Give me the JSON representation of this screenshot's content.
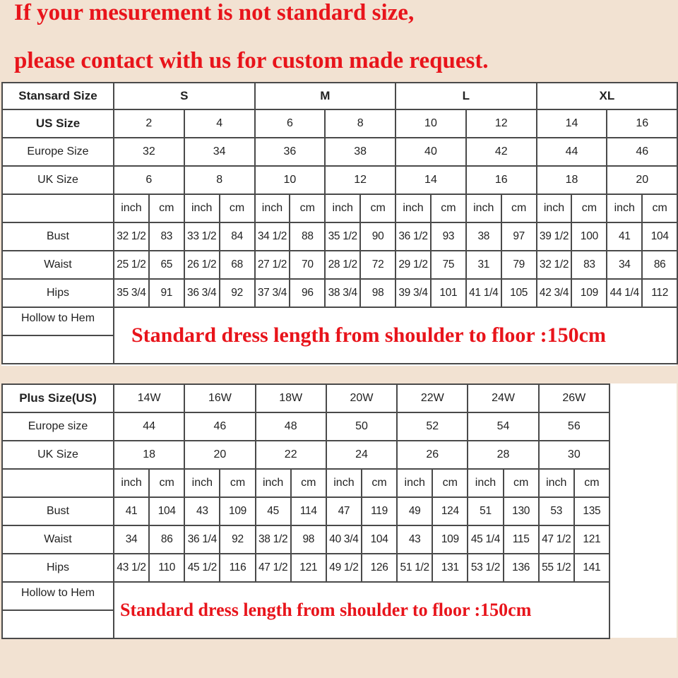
{
  "headline": {
    "line1": "If your mesurement is not standard size,",
    "line2": "please contact with us for custom made request."
  },
  "colors": {
    "accent_red": "#e8141b",
    "background": "#f2e2d2",
    "grid": "#4a4a4a"
  },
  "standard_table": {
    "header_label": "Stansard Size",
    "groups": [
      "S",
      "M",
      "L",
      "XL"
    ],
    "us_label": "US Size",
    "us": [
      "2",
      "4",
      "6",
      "8",
      "10",
      "12",
      "14",
      "16"
    ],
    "europe_label": "Europe Size",
    "europe": [
      "32",
      "34",
      "36",
      "38",
      "40",
      "42",
      "44",
      "46"
    ],
    "uk_label": "UK Size",
    "uk": [
      "6",
      "8",
      "10",
      "12",
      "14",
      "16",
      "18",
      "20"
    ],
    "unit_inch": "inch",
    "unit_cm": "cm",
    "measurements": [
      {
        "label": "Bust",
        "values": [
          "32 1/2",
          "83",
          "33 1/2",
          "84",
          "34 1/2",
          "88",
          "35 1/2",
          "90",
          "36 1/2",
          "93",
          "38",
          "97",
          "39 1/2",
          "100",
          "41",
          "104"
        ]
      },
      {
        "label": "Waist",
        "values": [
          "25 1/2",
          "65",
          "26 1/2",
          "68",
          "27 1/2",
          "70",
          "28 1/2",
          "72",
          "29 1/2",
          "75",
          "31",
          "79",
          "32 1/2",
          "83",
          "34",
          "86"
        ]
      },
      {
        "label": "Hips",
        "values": [
          "35 3/4",
          "91",
          "36 3/4",
          "92",
          "37 3/4",
          "96",
          "38 3/4",
          "98",
          "39 3/4",
          "101",
          "41 1/4",
          "105",
          "42 3/4",
          "109",
          "44 1/4",
          "112"
        ]
      }
    ],
    "hollow_label": "Hollow to Hem",
    "note": "Standard dress length from shoulder to floor :150cm"
  },
  "plus_table": {
    "header_label": "Plus Size(US)",
    "us": [
      "14W",
      "16W",
      "18W",
      "20W",
      "22W",
      "24W",
      "26W"
    ],
    "europe_label": "Europe size",
    "europe": [
      "44",
      "46",
      "48",
      "50",
      "52",
      "54",
      "56"
    ],
    "uk_label": "UK Size",
    "uk": [
      "18",
      "20",
      "22",
      "24",
      "26",
      "28",
      "30"
    ],
    "unit_inch": "inch",
    "unit_cm": "cm",
    "measurements": [
      {
        "label": "Bust",
        "values": [
          "41",
          "104",
          "43",
          "109",
          "45",
          "114",
          "47",
          "119",
          "49",
          "124",
          "51",
          "130",
          "53",
          "135"
        ]
      },
      {
        "label": "Waist",
        "values": [
          "34",
          "86",
          "36 1/4",
          "92",
          "38 1/2",
          "98",
          "40 3/4",
          "104",
          "43",
          "109",
          "45 1/4",
          "115",
          "47 1/2",
          "121"
        ]
      },
      {
        "label": "Hips",
        "values": [
          "43 1/2",
          "110",
          "45 1/2",
          "116",
          "47 1/2",
          "121",
          "49 1/2",
          "126",
          "51 1/2",
          "131",
          "53 1/2",
          "136",
          "55 1/2",
          "141"
        ]
      }
    ],
    "hollow_label": "Hollow to Hem",
    "note": "Standard dress length from shoulder to floor :150cm"
  }
}
